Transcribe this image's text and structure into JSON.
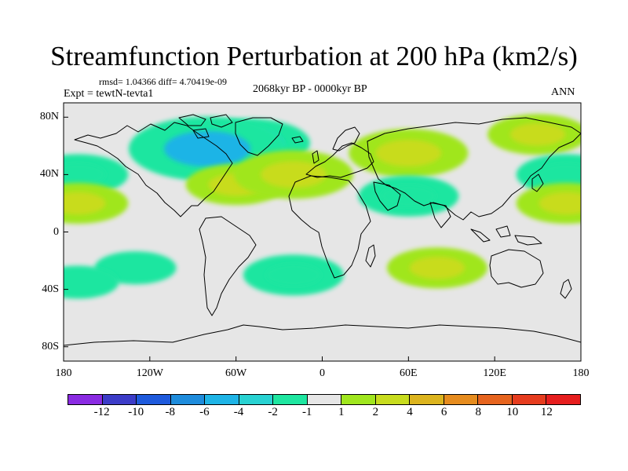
{
  "title": "Streamfunction Perturbation at 200 hPa (km2/s)",
  "stats": "rmsd= 1.04366 diff= 4.70419e-09",
  "expt": "Expt = tewtN-tevta1",
  "period": "2068kyr BP - 0000kyr BP",
  "season": "ANN",
  "map": {
    "projection": "cylindrical equidistant",
    "background_color": "#e6e6e6",
    "coastline_color": "#000000",
    "x_ticks": [
      {
        "lon": -180,
        "label": "180"
      },
      {
        "lon": -120,
        "label": "120W"
      },
      {
        "lon": -60,
        "label": "60W"
      },
      {
        "lon": 0,
        "label": "0"
      },
      {
        "lon": 60,
        "label": "60E"
      },
      {
        "lon": 120,
        "label": "120E"
      },
      {
        "lon": 180,
        "label": "180"
      }
    ],
    "y_ticks": [
      {
        "lat": 80,
        "label": "80N"
      },
      {
        "lat": 40,
        "label": "40N"
      },
      {
        "lat": 0,
        "label": "0"
      },
      {
        "lat": -40,
        "label": "40S"
      },
      {
        "lat": -80,
        "label": "80S"
      }
    ],
    "anomalies": [
      {
        "lon": -50,
        "lat": 62,
        "value": -3
      },
      {
        "lon": -80,
        "lat": 58,
        "value": -5
      },
      {
        "lon": -60,
        "lat": 33,
        "value": 2
      },
      {
        "lon": -20,
        "lat": 40,
        "value": 3
      },
      {
        "lon": 60,
        "lat": 55,
        "value": 3
      },
      {
        "lon": 60,
        "lat": 25,
        "value": -2
      },
      {
        "lon": 150,
        "lat": 68,
        "value": 2
      },
      {
        "lon": 170,
        "lat": 40,
        "value": -2
      },
      {
        "lon": -170,
        "lat": 40,
        "value": -2
      },
      {
        "lon": -170,
        "lat": 20,
        "value": 2
      },
      {
        "lon": 170,
        "lat": 20,
        "value": 2
      },
      {
        "lon": -20,
        "lat": -30,
        "value": -2
      },
      {
        "lon": 80,
        "lat": -25,
        "value": 2
      },
      {
        "lon": -130,
        "lat": -25,
        "value": -1
      },
      {
        "lon": -170,
        "lat": -35,
        "value": -1
      }
    ]
  },
  "colorbar": {
    "colors": [
      "#8a2be2",
      "#3c3cc8",
      "#1e5adc",
      "#1e8cdc",
      "#1eb4e6",
      "#28d2d2",
      "#1ee6a0",
      "#e6e6e6",
      "#a0e61e",
      "#c8dc1e",
      "#dcb41e",
      "#e68c1e",
      "#e6641e",
      "#e63c1e",
      "#e61e1e"
    ],
    "labels": [
      "-12",
      "-10",
      "-8",
      "-6",
      "-4",
      "-2",
      "-1",
      "1",
      "2",
      "4",
      "6",
      "8",
      "10",
      "12"
    ]
  }
}
